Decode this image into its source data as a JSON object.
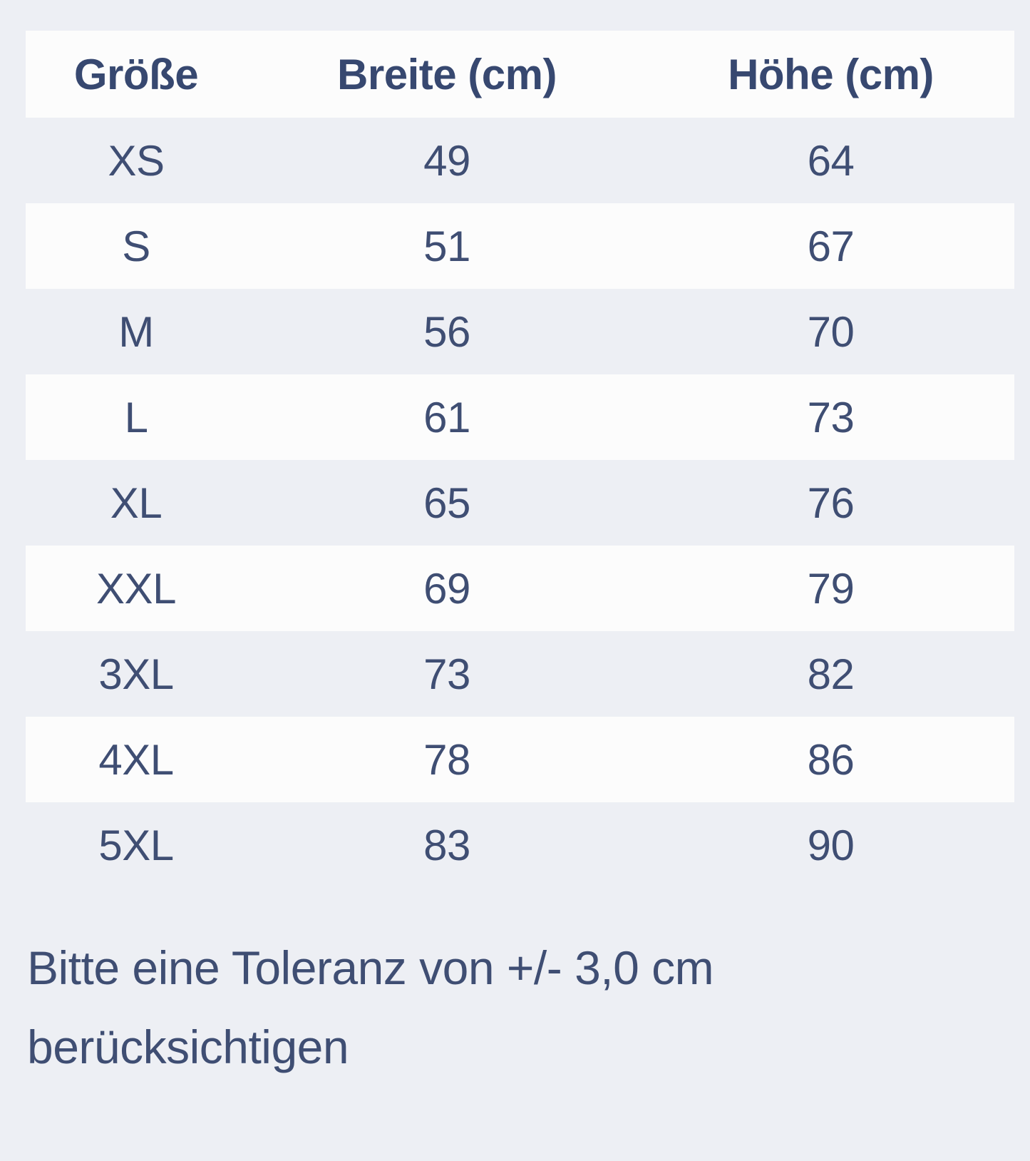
{
  "theme": {
    "page_background": "#edeff4",
    "stripe_color": "#fcfcfc",
    "text_color": "#3f4e73",
    "header_text_color": "#374870"
  },
  "size_table": {
    "columns": [
      "Größe",
      "Breite (cm)",
      "Höhe (cm)"
    ],
    "rows": [
      {
        "size": "XS",
        "breite_cm": "49",
        "hoehe_cm": "64"
      },
      {
        "size": "S",
        "breite_cm": "51",
        "hoehe_cm": "67"
      },
      {
        "size": "M",
        "breite_cm": "56",
        "hoehe_cm": "70"
      },
      {
        "size": "L",
        "breite_cm": "61",
        "hoehe_cm": "73"
      },
      {
        "size": "XL",
        "breite_cm": "65",
        "hoehe_cm": "76"
      },
      {
        "size": "XXL",
        "breite_cm": "69",
        "hoehe_cm": "79"
      },
      {
        "size": "3XL",
        "breite_cm": "73",
        "hoehe_cm": "82"
      },
      {
        "size": "4XL",
        "breite_cm": "78",
        "hoehe_cm": "86"
      },
      {
        "size": "5XL",
        "breite_cm": "83",
        "hoehe_cm": "90"
      }
    ]
  },
  "footer": {
    "note": "Bitte eine Toleranz von +/- 3,0 cm berücksichtigen"
  }
}
